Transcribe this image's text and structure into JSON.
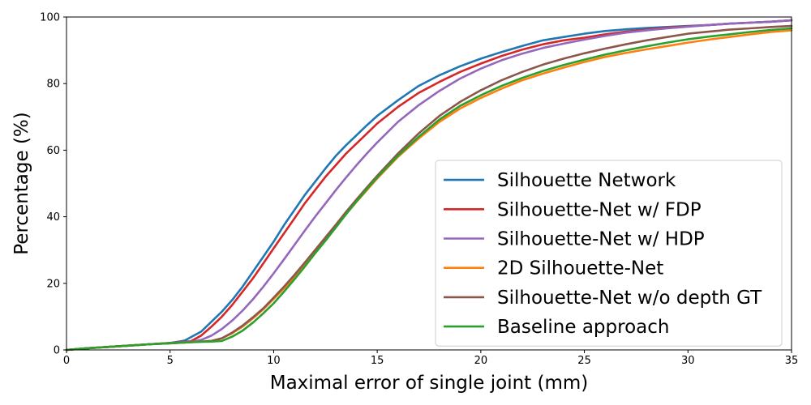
{
  "chart_data": {
    "type": "line",
    "xlabel": "Maximal error of single joint (mm)",
    "ylabel": "Percentage (%)",
    "xlim": [
      0,
      35
    ],
    "ylim": [
      0,
      100
    ],
    "xticks": [
      "0",
      "5",
      "10",
      "15",
      "20",
      "25",
      "30",
      "35"
    ],
    "yticks": [
      "0",
      "20",
      "40",
      "60",
      "80",
      "100"
    ],
    "grid": false,
    "legend_position": "lower-right",
    "series": [
      {
        "name": "Silhouette Network",
        "color": "#1f77b4",
        "x": [
          0,
          1,
          2,
          3,
          4,
          5,
          5.7,
          6.5,
          7,
          7.5,
          8,
          8.5,
          9,
          9.5,
          10,
          10.5,
          11,
          11.5,
          12,
          12.5,
          13,
          13.5,
          14,
          14.5,
          15,
          16,
          17,
          18,
          19,
          20,
          21,
          22,
          23,
          24,
          25,
          26,
          27,
          28,
          29,
          30,
          31,
          32,
          33,
          34,
          35
        ],
        "y": [
          0,
          0.5,
          0.9,
          1.3,
          1.7,
          2.1,
          2.8,
          5.5,
          8.5,
          11.5,
          15,
          19,
          23.5,
          28,
          32.5,
          37.5,
          42,
          46.5,
          50.5,
          54.5,
          58.3,
          61.5,
          64.5,
          67.5,
          70.3,
          75,
          79.3,
          82.5,
          85.2,
          87.5,
          89.5,
          91.3,
          93,
          94,
          95,
          95.8,
          96.3,
          96.7,
          97,
          97.3,
          97.6,
          98,
          98.3,
          98.6,
          99
        ]
      },
      {
        "name": "Silhouette-Net w/ FDP",
        "color": "#d62728",
        "x": [
          0,
          1,
          2,
          3,
          4,
          5,
          6,
          6.5,
          7,
          7.5,
          8,
          8.5,
          9,
          9.5,
          10,
          10.5,
          11,
          11.5,
          12,
          12.5,
          13,
          13.5,
          14,
          14.5,
          15,
          16,
          17,
          18,
          19,
          20,
          21,
          22,
          23,
          24,
          25,
          26,
          27,
          28,
          29,
          30,
          31,
          32,
          33,
          34,
          35
        ],
        "y": [
          0,
          0.5,
          0.9,
          1.3,
          1.7,
          2.1,
          2.6,
          4.3,
          7,
          10,
          13.5,
          17.5,
          21.5,
          26,
          30.5,
          35,
          39.5,
          44,
          48,
          52,
          55.5,
          59,
          62,
          65,
          68,
          73,
          77.2,
          80.5,
          83.5,
          86,
          88.3,
          90.2,
          91.8,
          93,
          93.8,
          94.8,
          95.6,
          96.2,
          96.8,
          97.2,
          97.6,
          98,
          98.3,
          98.6,
          99
        ]
      },
      {
        "name": "Silhouette-Net w/ HDP",
        "color": "#9467bd",
        "x": [
          0,
          1,
          2,
          3,
          4,
          5,
          6,
          6.5,
          7,
          7.5,
          8,
          8.5,
          9,
          9.5,
          10,
          10.5,
          11,
          11.5,
          12,
          12.5,
          13,
          13.5,
          14,
          14.5,
          15,
          16,
          17,
          18,
          19,
          20,
          21,
          22,
          23,
          24,
          25,
          26,
          27,
          28,
          29,
          30,
          31,
          32,
          33,
          34,
          35
        ],
        "y": [
          0,
          0.5,
          0.9,
          1.3,
          1.7,
          2.1,
          2.4,
          3,
          4.3,
          6.3,
          8.8,
          11.8,
          15.2,
          19,
          23,
          27.2,
          31.5,
          35.8,
          40,
          44,
          48,
          51.8,
          55.5,
          59,
          62.3,
          68.5,
          73.5,
          77.8,
          81.5,
          84.5,
          87,
          89,
          90.7,
          92,
          93.2,
          94.3,
          95.3,
          96,
          96.6,
          97.1,
          97.6,
          98,
          98.3,
          98.6,
          99
        ]
      },
      {
        "name": "2D Silhouette-Net",
        "color": "#ff7f0e",
        "x": [
          0,
          1,
          2,
          3,
          4,
          5,
          6,
          7,
          7.5,
          8,
          8.5,
          9,
          9.5,
          10,
          10.5,
          11,
          11.5,
          12,
          12.5,
          13,
          13.5,
          14,
          14.5,
          15,
          16,
          17,
          18,
          19,
          20,
          21,
          22,
          23,
          24,
          25,
          26,
          27,
          28,
          29,
          30,
          31,
          32,
          33,
          34,
          35
        ],
        "y": [
          0,
          0.5,
          0.9,
          1.3,
          1.7,
          2.0,
          2.3,
          2.7,
          3.5,
          5,
          7,
          9.5,
          12.2,
          15.3,
          18.5,
          22,
          25.8,
          29.5,
          33.3,
          37,
          40.8,
          44.5,
          48,
          51.5,
          58,
          63.5,
          68.5,
          72.5,
          75.7,
          78.5,
          81,
          83,
          84.8,
          86.5,
          88,
          89.2,
          90.3,
          91.3,
          92.3,
          93.2,
          94,
          94.8,
          95.5,
          96
        ]
      },
      {
        "name": "Silhouette-Net w/o depth GT",
        "color": "#8c564b",
        "x": [
          0,
          1,
          2,
          3,
          4,
          5,
          6,
          7,
          7.5,
          8,
          8.5,
          9,
          9.5,
          10,
          10.5,
          11,
          11.5,
          12,
          12.5,
          13,
          13.5,
          14,
          14.5,
          15,
          16,
          17,
          18,
          19,
          20,
          21,
          22,
          23,
          24,
          25,
          26,
          27,
          28,
          29,
          30,
          31,
          32,
          33,
          34,
          35
        ],
        "y": [
          0,
          0.5,
          0.9,
          1.3,
          1.7,
          2.0,
          2.3,
          2.7,
          3.5,
          5.2,
          7.3,
          9.8,
          12.5,
          15.7,
          19,
          22.5,
          26.2,
          30,
          33.8,
          37.6,
          41.5,
          45.2,
          48.8,
          52.3,
          59,
          65,
          70.3,
          74.5,
          78,
          81,
          83.5,
          85.7,
          87.5,
          89.1,
          90.5,
          91.8,
          93,
          94,
          95,
          95.6,
          96.2,
          96.6,
          97,
          97.3
        ]
      },
      {
        "name": "Baseline approach",
        "color": "#2ca02c",
        "x": [
          0,
          1,
          2,
          3,
          4,
          5,
          6,
          7,
          7.5,
          8,
          8.5,
          9,
          9.5,
          10,
          10.5,
          11,
          11.5,
          12,
          12.5,
          13,
          13.5,
          14,
          14.5,
          15,
          16,
          17,
          18,
          19,
          20,
          21,
          22,
          23,
          24,
          25,
          26,
          27,
          28,
          29,
          30,
          31,
          32,
          33,
          34,
          35
        ],
        "y": [
          0,
          0.5,
          0.9,
          1.3,
          1.7,
          2.0,
          2.3,
          2.5,
          2.7,
          4,
          5.8,
          8.2,
          11,
          14,
          17.5,
          21.2,
          25,
          29,
          32.8,
          36.8,
          40.8,
          44.6,
          48.3,
          51.8,
          58.3,
          64,
          69.2,
          73.3,
          76.5,
          79.3,
          81.7,
          83.8,
          85.6,
          87.2,
          88.7,
          90,
          91.2,
          92.3,
          93.3,
          94.1,
          94.8,
          95.5,
          96.1,
          96.6
        ]
      }
    ]
  }
}
